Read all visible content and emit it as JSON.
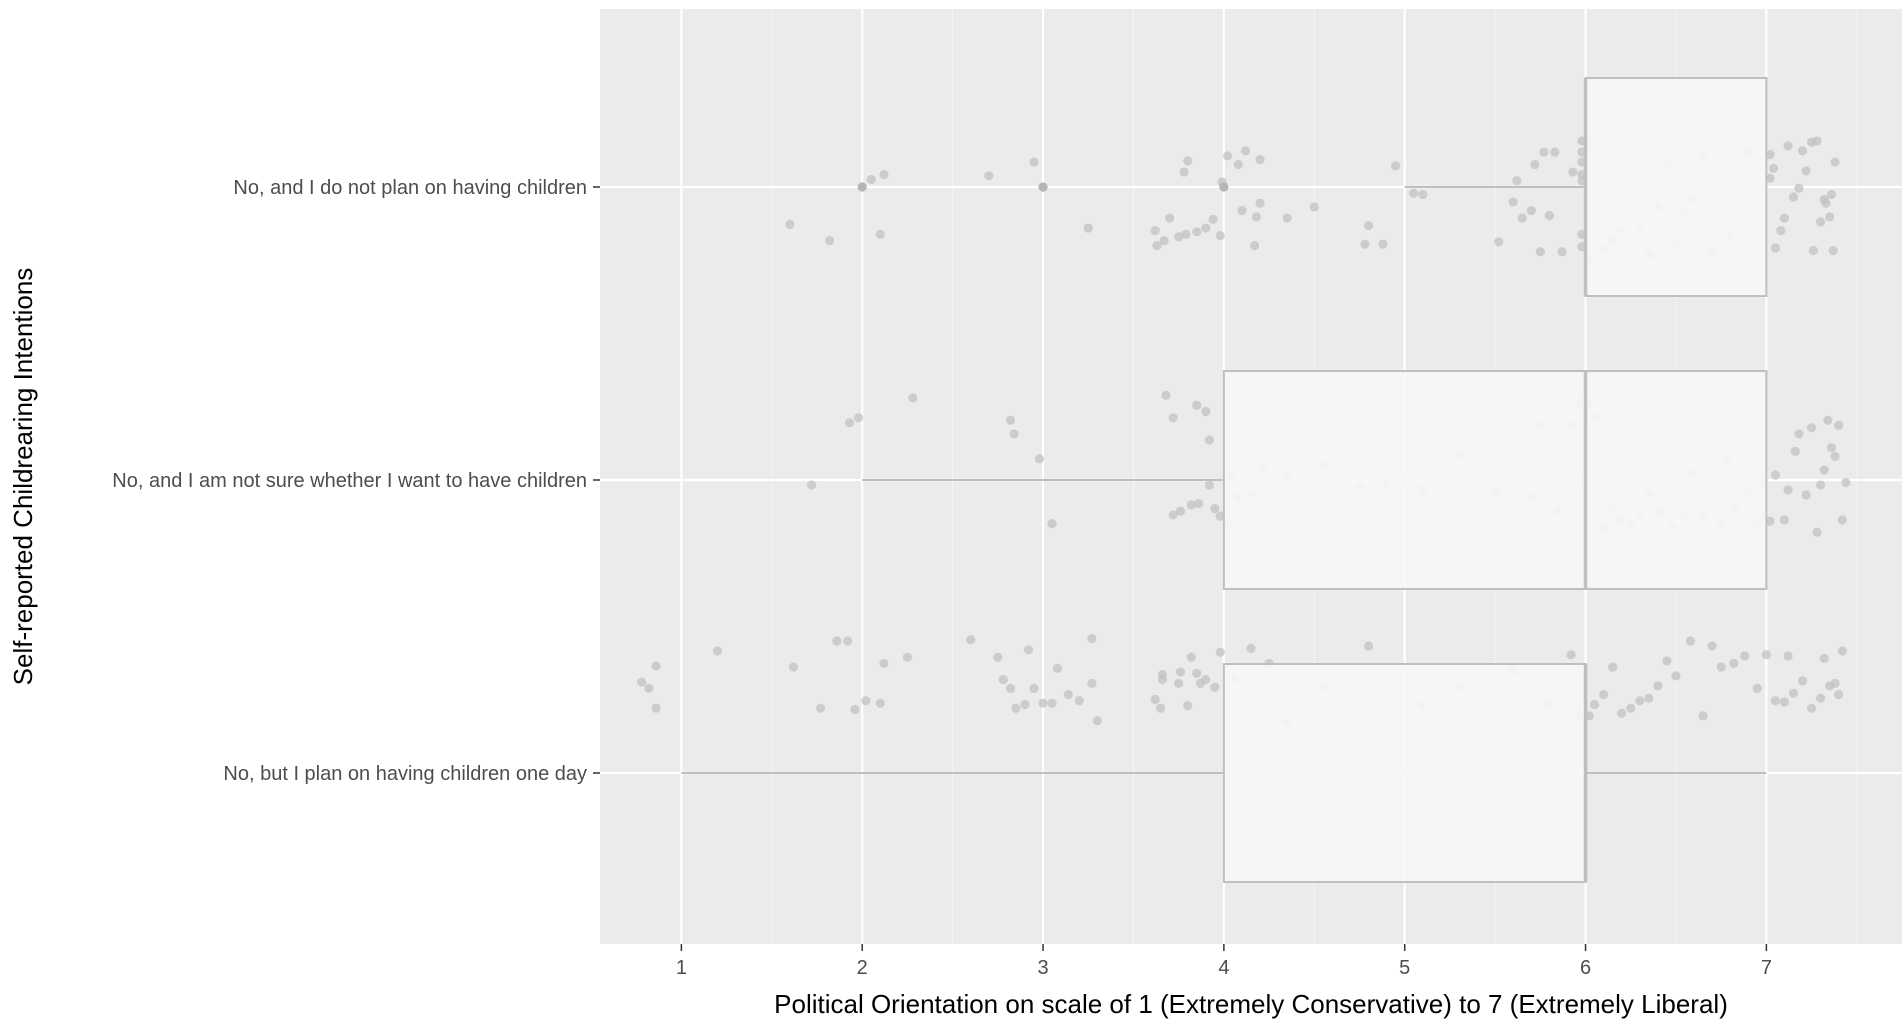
{
  "chart_data": {
    "type": "boxplot",
    "orientation": "horizontal",
    "title": "",
    "xlabel": "Political Orientation on scale of 1 (Extremely Conservative) to 7 (Extremely Liberal)",
    "ylabel": "Self-reported Childrearing Intentions",
    "xlim": [
      0.55,
      7.75
    ],
    "x_ticks": [
      "1",
      "2",
      "3",
      "4",
      "5",
      "6",
      "7"
    ],
    "grid": true,
    "legend": "none",
    "categories": [
      "No, and I do not plan on having children",
      "No, and I am not sure whether I want to have children",
      "No, but I plan on having children one day"
    ],
    "boxes": [
      {
        "category": "No, and I do not plan on having children",
        "whisker_low": 5,
        "q1": 6,
        "median": 6,
        "q3": 7,
        "whisker_high": 7,
        "outliers": [
          2,
          3,
          4
        ]
      },
      {
        "category": "No, and I am not sure whether I want to have children",
        "whisker_low": 2,
        "q1": 4,
        "median": 6,
        "q3": 7,
        "whisker_high": 7,
        "outliers": []
      },
      {
        "category": "No, but I plan on having children one day",
        "whisker_low": 1,
        "q1": 4,
        "median": 6,
        "q3": 6,
        "whisker_high": 7,
        "outliers": []
      }
    ],
    "jitter_points": [
      [
        [
          1.6,
          0.3
        ],
        [
          1.82,
          0.43
        ],
        [
          2.1,
          0.38
        ],
        [
          2.05,
          -0.06
        ],
        [
          2.12,
          -0.1
        ],
        [
          2.7,
          -0.09
        ],
        [
          2.95,
          -0.2
        ],
        [
          3.25,
          0.33
        ],
        [
          3.63,
          0.47
        ],
        [
          3.67,
          0.43
        ],
        [
          3.62,
          0.35
        ],
        [
          3.7,
          0.25
        ],
        [
          3.75,
          0.4
        ],
        [
          3.79,
          0.38
        ],
        [
          3.85,
          0.36
        ],
        [
          3.9,
          0.33
        ],
        [
          3.98,
          0.39
        ],
        [
          3.94,
          0.26
        ],
        [
          3.78,
          -0.12
        ],
        [
          3.8,
          -0.21
        ],
        [
          3.99,
          -0.04
        ],
        [
          4.02,
          -0.25
        ],
        [
          4.08,
          -0.18
        ],
        [
          4.12,
          -0.29
        ],
        [
          4.17,
          0.47
        ],
        [
          4.1,
          0.19
        ],
        [
          4.18,
          0.24
        ],
        [
          4.2,
          0.13
        ],
        [
          4.2,
          -0.22
        ],
        [
          4.35,
          0.25
        ],
        [
          4.5,
          0.16
        ],
        [
          4.78,
          0.46
        ],
        [
          4.8,
          0.31
        ],
        [
          4.88,
          0.46
        ],
        [
          4.95,
          -0.17
        ],
        [
          5.05,
          0.05
        ],
        [
          5.1,
          0.06
        ],
        [
          5.52,
          0.44
        ],
        [
          5.6,
          0.12
        ],
        [
          5.65,
          0.25
        ],
        [
          5.7,
          0.19
        ],
        [
          5.75,
          0.52
        ],
        [
          5.8,
          0.23
        ],
        [
          5.87,
          0.52
        ],
        [
          5.93,
          -0.12
        ],
        [
          5.72,
          -0.18
        ],
        [
          5.77,
          -0.28
        ],
        [
          5.83,
          -0.28
        ],
        [
          5.62,
          -0.05
        ],
        [
          5.98,
          0.48
        ],
        [
          5.98,
          0.38
        ],
        [
          5.98,
          -0.05
        ],
        [
          5.98,
          -0.2
        ],
        [
          5.98,
          -0.37
        ],
        [
          5.98,
          -0.1
        ],
        [
          5.98,
          -0.28
        ],
        [
          6.01,
          -0.35
        ],
        [
          6.02,
          0.58
        ],
        [
          6.1,
          0.5
        ],
        [
          6.15,
          0.42
        ],
        [
          6.2,
          0.35
        ],
        [
          6.3,
          0.3
        ],
        [
          6.35,
          0.55
        ],
        [
          6.4,
          0.16
        ],
        [
          6.45,
          -0.18
        ],
        [
          6.5,
          0.46
        ],
        [
          6.55,
          0.2
        ],
        [
          6.6,
          0.1
        ],
        [
          6.65,
          -0.23
        ],
        [
          6.7,
          0.51
        ],
        [
          6.8,
          0.38
        ],
        [
          6.9,
          -0.28
        ],
        [
          7.05,
          0.49
        ],
        [
          7.08,
          0.35
        ],
        [
          7.1,
          0.25
        ],
        [
          7.15,
          0.08
        ],
        [
          7.18,
          0.01
        ],
        [
          7.22,
          -0.13
        ],
        [
          7.26,
          0.51
        ],
        [
          7.28,
          -0.37
        ],
        [
          7.3,
          0.28
        ],
        [
          7.32,
          0.1
        ],
        [
          7.33,
          0.13
        ],
        [
          7.36,
          0.06
        ],
        [
          7.37,
          0.51
        ],
        [
          7.35,
          0.24
        ],
        [
          7.38,
          -0.2
        ],
        [
          7.02,
          -0.26
        ],
        [
          7.04,
          -0.15
        ],
        [
          7.12,
          -0.33
        ],
        [
          7.2,
          -0.29
        ],
        [
          7.25,
          -0.36
        ],
        [
          7.02,
          -0.07
        ]
      ],
      [
        [
          1.72,
          0.04
        ],
        [
          1.93,
          -0.46
        ],
        [
          1.98,
          -0.5
        ],
        [
          2.28,
          -0.66
        ],
        [
          2.82,
          -0.48
        ],
        [
          2.84,
          -0.37
        ],
        [
          2.98,
          -0.17
        ],
        [
          3.05,
          0.35
        ],
        [
          3.72,
          0.28
        ],
        [
          3.76,
          0.25
        ],
        [
          3.82,
          0.2
        ],
        [
          3.86,
          0.19
        ],
        [
          3.95,
          0.23
        ],
        [
          3.98,
          0.29
        ],
        [
          4.02,
          0.35
        ],
        [
          3.68,
          -0.68
        ],
        [
          3.72,
          -0.5
        ],
        [
          3.85,
          -0.6
        ],
        [
          3.9,
          -0.55
        ],
        [
          3.92,
          -0.32
        ],
        [
          3.92,
          0.04
        ],
        [
          4.04,
          -0.04
        ],
        [
          4.08,
          0.14
        ],
        [
          4.15,
          0.11
        ],
        [
          4.22,
          -0.12
        ],
        [
          4.35,
          -0.04
        ],
        [
          4.55,
          -0.12
        ],
        [
          4.75,
          0.06
        ],
        [
          4.9,
          0.03
        ],
        [
          5.1,
          0.08
        ],
        [
          5.3,
          -0.2
        ],
        [
          5.5,
          0.1
        ],
        [
          5.7,
          0.14
        ],
        [
          5.75,
          -0.44
        ],
        [
          5.85,
          0.25
        ],
        [
          5.92,
          -0.44
        ],
        [
          5.97,
          -0.62
        ],
        [
          6.02,
          -0.62
        ],
        [
          6.05,
          -0.5
        ],
        [
          6.1,
          0.38
        ],
        [
          6.15,
          0.22
        ],
        [
          6.2,
          0.32
        ],
        [
          6.25,
          0.36
        ],
        [
          6.3,
          0.26
        ],
        [
          6.35,
          0.12
        ],
        [
          6.4,
          0.26
        ],
        [
          6.48,
          0.38
        ],
        [
          6.55,
          0.28
        ],
        [
          6.6,
          -0.06
        ],
        [
          6.65,
          0.28
        ],
        [
          6.75,
          0.37
        ],
        [
          6.78,
          -0.17
        ],
        [
          6.82,
          0.22
        ],
        [
          6.9,
          0.09
        ],
        [
          6.95,
          0.36
        ],
        [
          6.98,
          0.02
        ],
        [
          7.02,
          0.33
        ],
        [
          7.05,
          -0.04
        ],
        [
          7.1,
          0.32
        ],
        [
          7.12,
          0.08
        ],
        [
          7.16,
          -0.23
        ],
        [
          7.18,
          -0.37
        ],
        [
          7.22,
          0.12
        ],
        [
          7.25,
          -0.42
        ],
        [
          7.28,
          0.42
        ],
        [
          7.3,
          0.04
        ],
        [
          7.32,
          -0.08
        ],
        [
          7.34,
          -0.48
        ],
        [
          7.36,
          -0.26
        ],
        [
          7.38,
          -0.19
        ],
        [
          7.4,
          -0.44
        ],
        [
          7.42,
          0.32
        ],
        [
          7.44,
          0.02
        ]
      ],
      [
        [
          0.78,
          -0.73
        ],
        [
          0.82,
          -0.68
        ],
        [
          0.86,
          -0.52
        ],
        [
          0.86,
          -0.86
        ],
        [
          1.2,
          -0.98
        ],
        [
          1.62,
          -0.85
        ],
        [
          1.77,
          -0.52
        ],
        [
          1.86,
          -1.06
        ],
        [
          1.92,
          -1.06
        ],
        [
          1.96,
          -0.51
        ],
        [
          2.02,
          -0.58
        ],
        [
          2.1,
          -0.56
        ],
        [
          2.12,
          -0.88
        ],
        [
          2.25,
          -0.93
        ],
        [
          2.6,
          -1.07
        ],
        [
          2.75,
          -0.93
        ],
        [
          2.78,
          -0.75
        ],
        [
          2.82,
          -0.68
        ],
        [
          2.85,
          -0.52
        ],
        [
          2.9,
          -0.55
        ],
        [
          2.92,
          -0.99
        ],
        [
          2.95,
          -0.68
        ],
        [
          3.0,
          -0.56
        ],
        [
          3.05,
          -0.56
        ],
        [
          3.08,
          -0.84
        ],
        [
          3.14,
          -0.63
        ],
        [
          3.2,
          -0.58
        ],
        [
          3.27,
          -0.72
        ],
        [
          3.27,
          -1.08
        ],
        [
          3.3,
          -0.42
        ],
        [
          3.62,
          -0.59
        ],
        [
          3.65,
          -0.52
        ],
        [
          3.66,
          -0.75
        ],
        [
          3.66,
          -0.79
        ],
        [
          3.75,
          -0.72
        ],
        [
          3.76,
          -0.81
        ],
        [
          3.8,
          -0.54
        ],
        [
          3.82,
          -0.93
        ],
        [
          3.85,
          -0.8
        ],
        [
          3.87,
          -0.72
        ],
        [
          3.9,
          -0.75
        ],
        [
          3.95,
          -0.69
        ],
        [
          3.98,
          -0.97
        ],
        [
          4.05,
          -0.75
        ],
        [
          4.15,
          -1.0
        ],
        [
          4.25,
          -0.88
        ],
        [
          4.35,
          -0.42
        ],
        [
          4.55,
          -0.7
        ],
        [
          4.8,
          -1.02
        ],
        [
          5.1,
          -0.55
        ],
        [
          5.3,
          -0.7
        ],
        [
          5.6,
          -0.82
        ],
        [
          5.8,
          -0.55
        ],
        [
          5.92,
          -0.95
        ],
        [
          5.96,
          -0.47
        ],
        [
          6.02,
          -0.46
        ],
        [
          6.05,
          -0.55
        ],
        [
          6.1,
          -0.63
        ],
        [
          6.15,
          -0.85
        ],
        [
          6.2,
          -0.48
        ],
        [
          6.25,
          -0.52
        ],
        [
          6.3,
          -0.58
        ],
        [
          6.35,
          -0.6
        ],
        [
          6.4,
          -0.7
        ],
        [
          6.45,
          -0.9
        ],
        [
          6.5,
          -0.78
        ],
        [
          6.58,
          -1.06
        ],
        [
          6.65,
          -0.46
        ],
        [
          6.7,
          -1.02
        ],
        [
          6.75,
          -0.85
        ],
        [
          6.82,
          -0.88
        ],
        [
          6.88,
          -0.94
        ],
        [
          6.95,
          -0.68
        ],
        [
          7.0,
          -0.95
        ],
        [
          7.05,
          -0.58
        ],
        [
          7.1,
          -0.57
        ],
        [
          7.12,
          -0.94
        ],
        [
          7.15,
          -0.64
        ],
        [
          7.2,
          -0.74
        ],
        [
          7.25,
          -0.52
        ],
        [
          7.3,
          -0.6
        ],
        [
          7.32,
          -0.92
        ],
        [
          7.35,
          -0.7
        ],
        [
          7.38,
          -0.72
        ],
        [
          7.4,
          -0.63
        ],
        [
          7.42,
          -0.98
        ]
      ]
    ]
  },
  "colors": {
    "panel_background": "#ebebeb",
    "grid_major": "#ffffff",
    "grid_minor": "#f4f4f4",
    "box_fill": "#f7f7f7",
    "box_line": "#bfbfbf",
    "point": "#c2c2c2",
    "tick_text": "#4d4d4d",
    "axis_title": "#000000"
  }
}
